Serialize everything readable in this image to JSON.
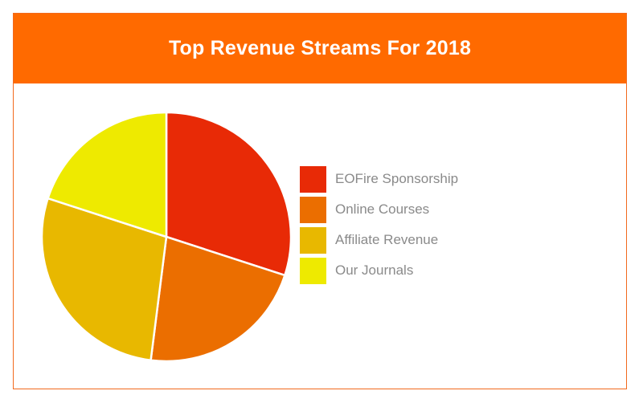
{
  "chart_data": {
    "type": "pie",
    "title": "Top Revenue Streams For 2018",
    "categories": [
      "EOFire Sponsorship",
      "Online Courses",
      "Affiliate Revenue",
      "Our Journals"
    ],
    "values": [
      30,
      22,
      28,
      20
    ],
    "colors": [
      "#e82a06",
      "#eb6e00",
      "#e8b800",
      "#eeea00"
    ],
    "legend": "right"
  },
  "colors": {
    "header_background": "#ff6a00",
    "border": "#f26a1d"
  }
}
